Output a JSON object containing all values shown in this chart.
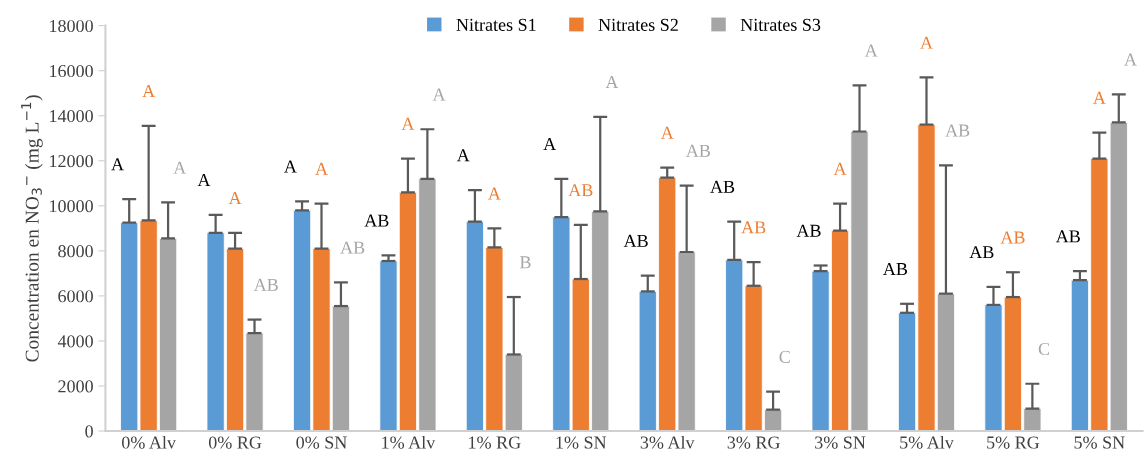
{
  "chart_data": {
    "type": "bar",
    "ylabel": "Concentration en NO$_{3}$$^{−}$ (mg L$^{−1}$)",
    "categories": [
      "0% Alv",
      "0% RG",
      "0% SN",
      "1% Alv",
      "1% RG",
      "1% SN",
      "3% Alv",
      "3% RG",
      "3% SN",
      "5% Alv",
      "5% RG",
      "5% SN"
    ],
    "series": [
      {
        "name": "Nitrates S1",
        "color": "#5b9bd5",
        "values": [
          9250,
          8800,
          9800,
          7550,
          9300,
          9500,
          6200,
          7600,
          7100,
          5250,
          5600,
          6700
        ],
        "errors": [
          [
            9250,
            10300
          ],
          [
            8800,
            9600
          ],
          [
            9800,
            10200
          ],
          [
            7550,
            7800
          ],
          [
            9300,
            10700
          ],
          [
            9500,
            11200
          ],
          [
            6200,
            6900
          ],
          [
            7600,
            9300
          ],
          [
            7100,
            7350
          ],
          [
            5250,
            5650
          ],
          [
            5600,
            6400
          ],
          [
            6700,
            7100
          ]
        ]
      },
      {
        "name": "Nitrates S2",
        "color": "#ed7d31",
        "values": [
          9350,
          8100,
          8100,
          10600,
          8150,
          6750,
          11250,
          6450,
          8900,
          13600,
          5950,
          12100
        ],
        "errors": [
          [
            9350,
            13550
          ],
          [
            8100,
            8800
          ],
          [
            8100,
            10100
          ],
          [
            10600,
            12100
          ],
          [
            8150,
            9000
          ],
          [
            6750,
            9150
          ],
          [
            11250,
            11700
          ],
          [
            6450,
            7500
          ],
          [
            8900,
            10100
          ],
          [
            13600,
            15700
          ],
          [
            5950,
            7050
          ],
          [
            12100,
            13250
          ]
        ]
      },
      {
        "name": "Nitrates S3",
        "color": "#a5a5a5",
        "values": [
          8550,
          4350,
          5550,
          11200,
          3400,
          9750,
          7950,
          950,
          13300,
          6100,
          1000,
          13700
        ],
        "errors": [
          [
            8550,
            10150
          ],
          [
            4350,
            4950
          ],
          [
            5550,
            6600
          ],
          [
            11200,
            13400
          ],
          [
            3400,
            5950
          ],
          [
            9750,
            13950
          ],
          [
            7950,
            10900
          ],
          [
            950,
            1750
          ],
          [
            13300,
            15350
          ],
          [
            6100,
            11800
          ],
          [
            1000,
            2100
          ],
          [
            13700,
            14950
          ]
        ]
      }
    ],
    "ylim": [
      0,
      18000
    ],
    "yticks": [
      0,
      2000,
      4000,
      6000,
      8000,
      10000,
      12000,
      14000,
      16000,
      18000
    ],
    "grid": false,
    "legend": "top",
    "annotations": [
      "A",
      "A",
      "A",
      "A",
      "A",
      "AB",
      "A",
      "A",
      "AB",
      "AB",
      "A",
      "A",
      "A",
      "A",
      "B",
      "A",
      "AB",
      "A",
      "AB",
      "A",
      "AB",
      "AB",
      "AB",
      "C",
      "AB",
      "A",
      "A",
      "AB",
      "A",
      "AB",
      "AB",
      "AB",
      "C",
      "AB",
      "A",
      "A"
    ]
  }
}
